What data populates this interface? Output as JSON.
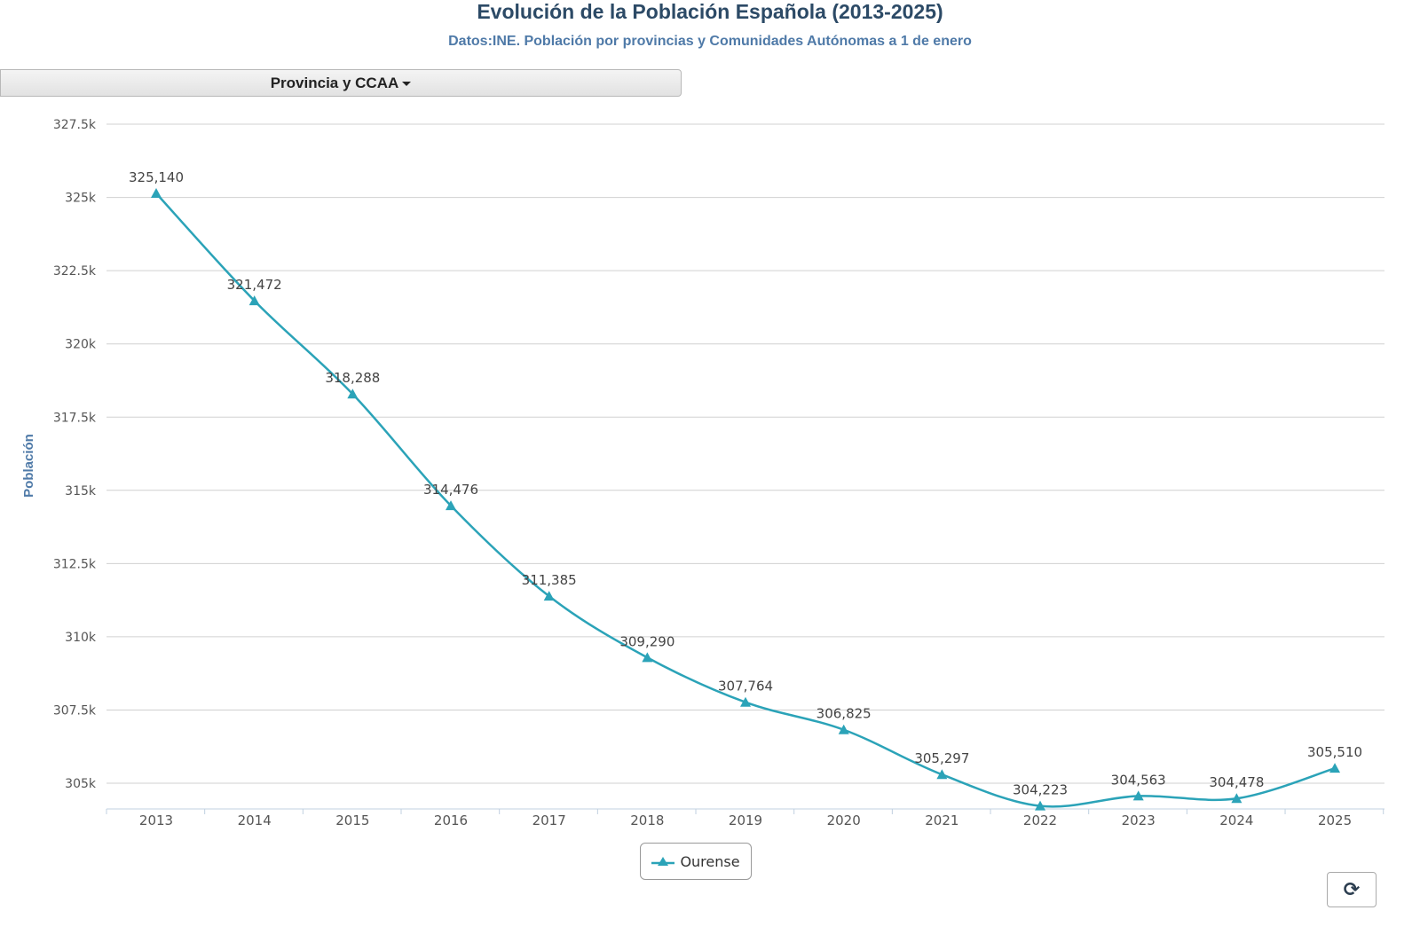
{
  "chart_data": {
    "type": "line",
    "title": "Evolución de la Población Española (2013-2025)",
    "subtitle": "Datos:INE. Población por provincias y Comunidades Autónomas a 1 de enero",
    "ylabel": "Población",
    "xlabel": "",
    "categories": [
      "2013",
      "2014",
      "2015",
      "2016",
      "2017",
      "2018",
      "2019",
      "2020",
      "2021",
      "2022",
      "2023",
      "2024",
      "2025"
    ],
    "series": [
      {
        "name": "Ourense",
        "values": [
          325140,
          321472,
          318288,
          314476,
          311385,
          309290,
          307764,
          306825,
          305297,
          304223,
          304563,
          304478,
          305510
        ],
        "color": "#2ba3b8",
        "marker": "triangle"
      }
    ],
    "data_labels": [
      "325,140",
      "321,472",
      "318,288",
      "314,476",
      "311,385",
      "309,290",
      "307,764",
      "306,825",
      "305,297",
      "304,223",
      "304,563",
      "304,478",
      "305,510"
    ],
    "ylim": [
      304125,
      327500
    ],
    "yticks": [
      305000,
      307500,
      310000,
      312500,
      315000,
      317500,
      320000,
      322500,
      325000,
      327500
    ],
    "ytick_labels": [
      "305k",
      "307.5k",
      "310k",
      "312.5k",
      "315k",
      "317.5k",
      "320k",
      "322.5k",
      "325k",
      "327.5k"
    ],
    "grid": true,
    "legend": "bottom-center"
  },
  "controls": {
    "dropdown_label": "Provincia y CCAA",
    "refresh_icon": "refresh-icon"
  }
}
